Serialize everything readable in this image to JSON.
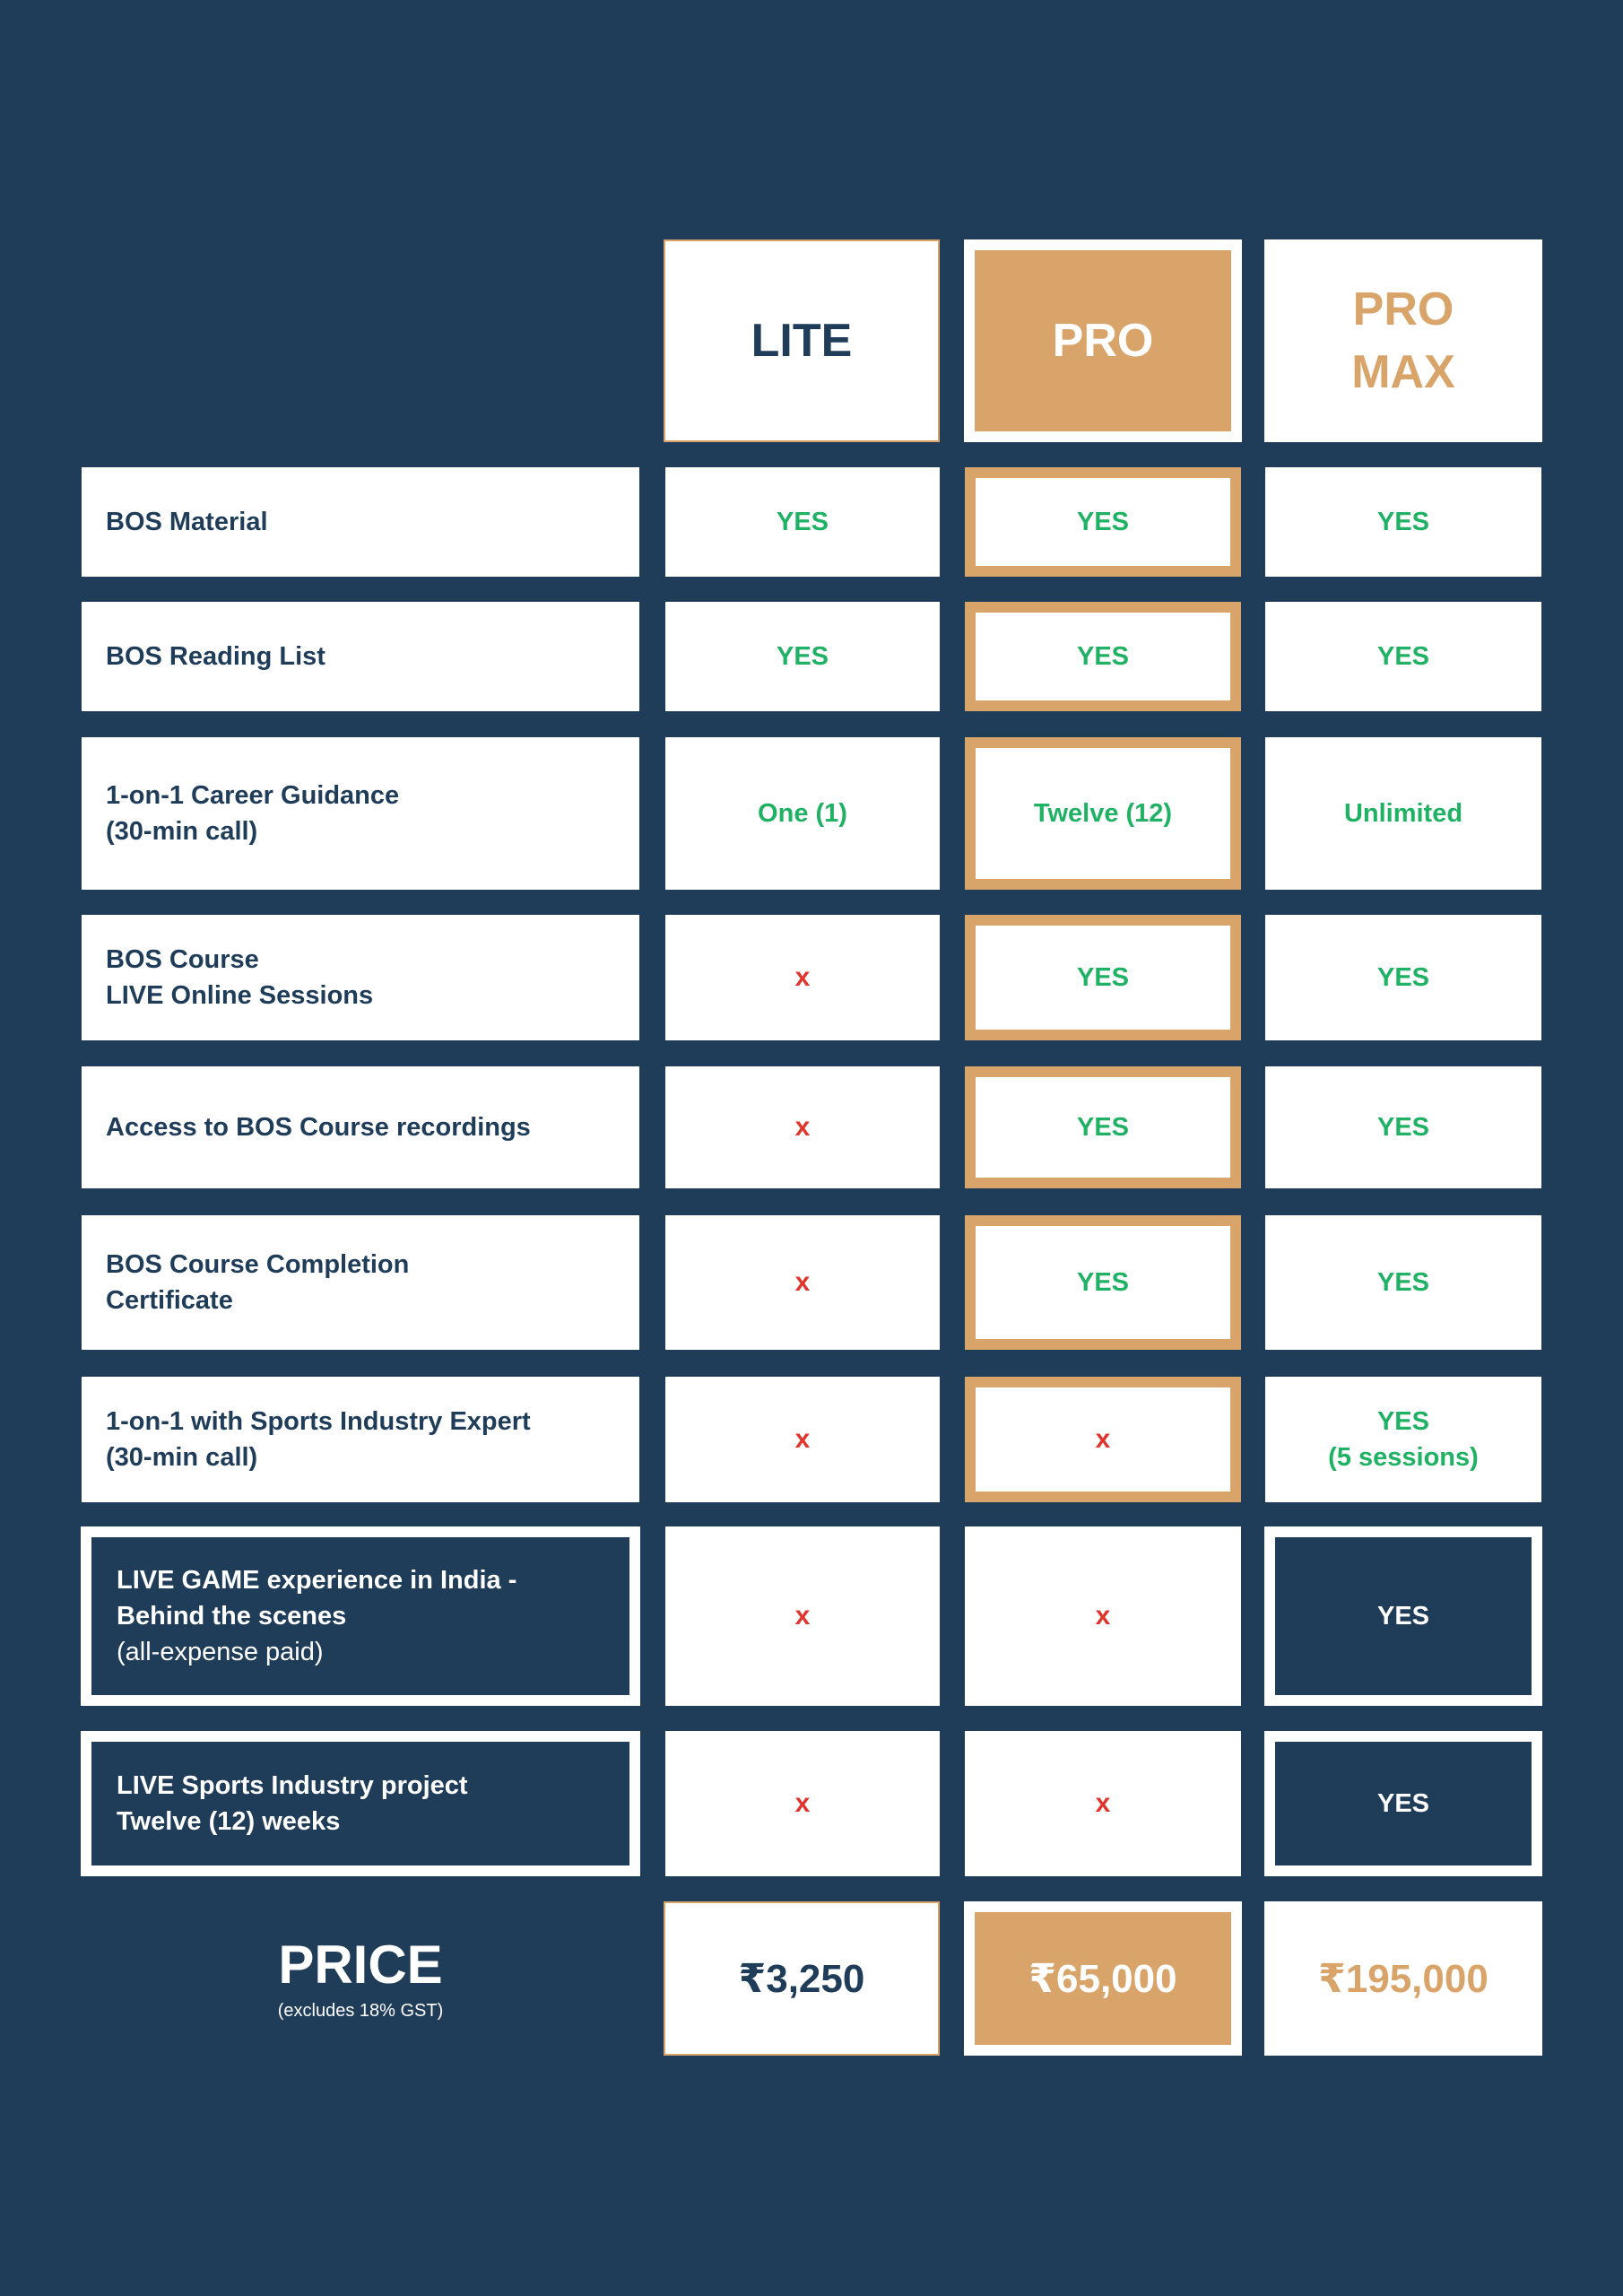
{
  "tiers": {
    "lite": {
      "label": "LITE"
    },
    "pro": {
      "label": "PRO"
    },
    "pro_max": {
      "label_line1": "PRO",
      "label_line2": "MAX"
    }
  },
  "rows": [
    {
      "feature": [
        "BOS Material"
      ],
      "lite": "YES",
      "pro": "YES",
      "pro_max": "YES"
    },
    {
      "feature": [
        "BOS Reading List"
      ],
      "lite": "YES",
      "pro": "YES",
      "pro_max": "YES"
    },
    {
      "feature": [
        "1-on-1 Career Guidance",
        "(30-min call)"
      ],
      "lite": "One (1)",
      "pro": "Twelve (12)",
      "pro_max": "Unlimited"
    },
    {
      "feature": [
        "BOS Course",
        "LIVE Online Sessions"
      ],
      "lite": "x",
      "pro": "YES",
      "pro_max": "YES"
    },
    {
      "feature": [
        "Access to BOS Course recordings"
      ],
      "lite": "x",
      "pro": "YES",
      "pro_max": "YES"
    },
    {
      "feature": [
        "BOS Course Completion",
        "Certificate"
      ],
      "lite": "x",
      "pro": "YES",
      "pro_max": "YES"
    },
    {
      "feature": [
        "1-on-1 with Sports Industry Expert",
        "(30-min call)"
      ],
      "lite": "x",
      "pro": "x",
      "pro_max": [
        "YES",
        "(5 sessions)"
      ]
    },
    {
      "feature": [
        "LIVE GAME experience in India -",
        "Behind the scenes",
        "(all-expense paid)"
      ],
      "lite": "x",
      "pro": "x",
      "pro_max": "YES"
    },
    {
      "feature": [
        "LIVE Sports Industry project",
        "Twelve (12) weeks"
      ],
      "lite": "x",
      "pro": "x",
      "pro_max": "YES"
    }
  ],
  "price": {
    "label": "PRICE",
    "note": "(excludes 18% GST)",
    "lite": "₹3,250",
    "pro": "₹65,000",
    "pro_max": "₹195,000"
  },
  "colors": {
    "background": "#1f3c59",
    "gold": "#d9a46a",
    "yes_green": "#1fb264",
    "no_red": "#e0352d",
    "white": "#ffffff"
  }
}
